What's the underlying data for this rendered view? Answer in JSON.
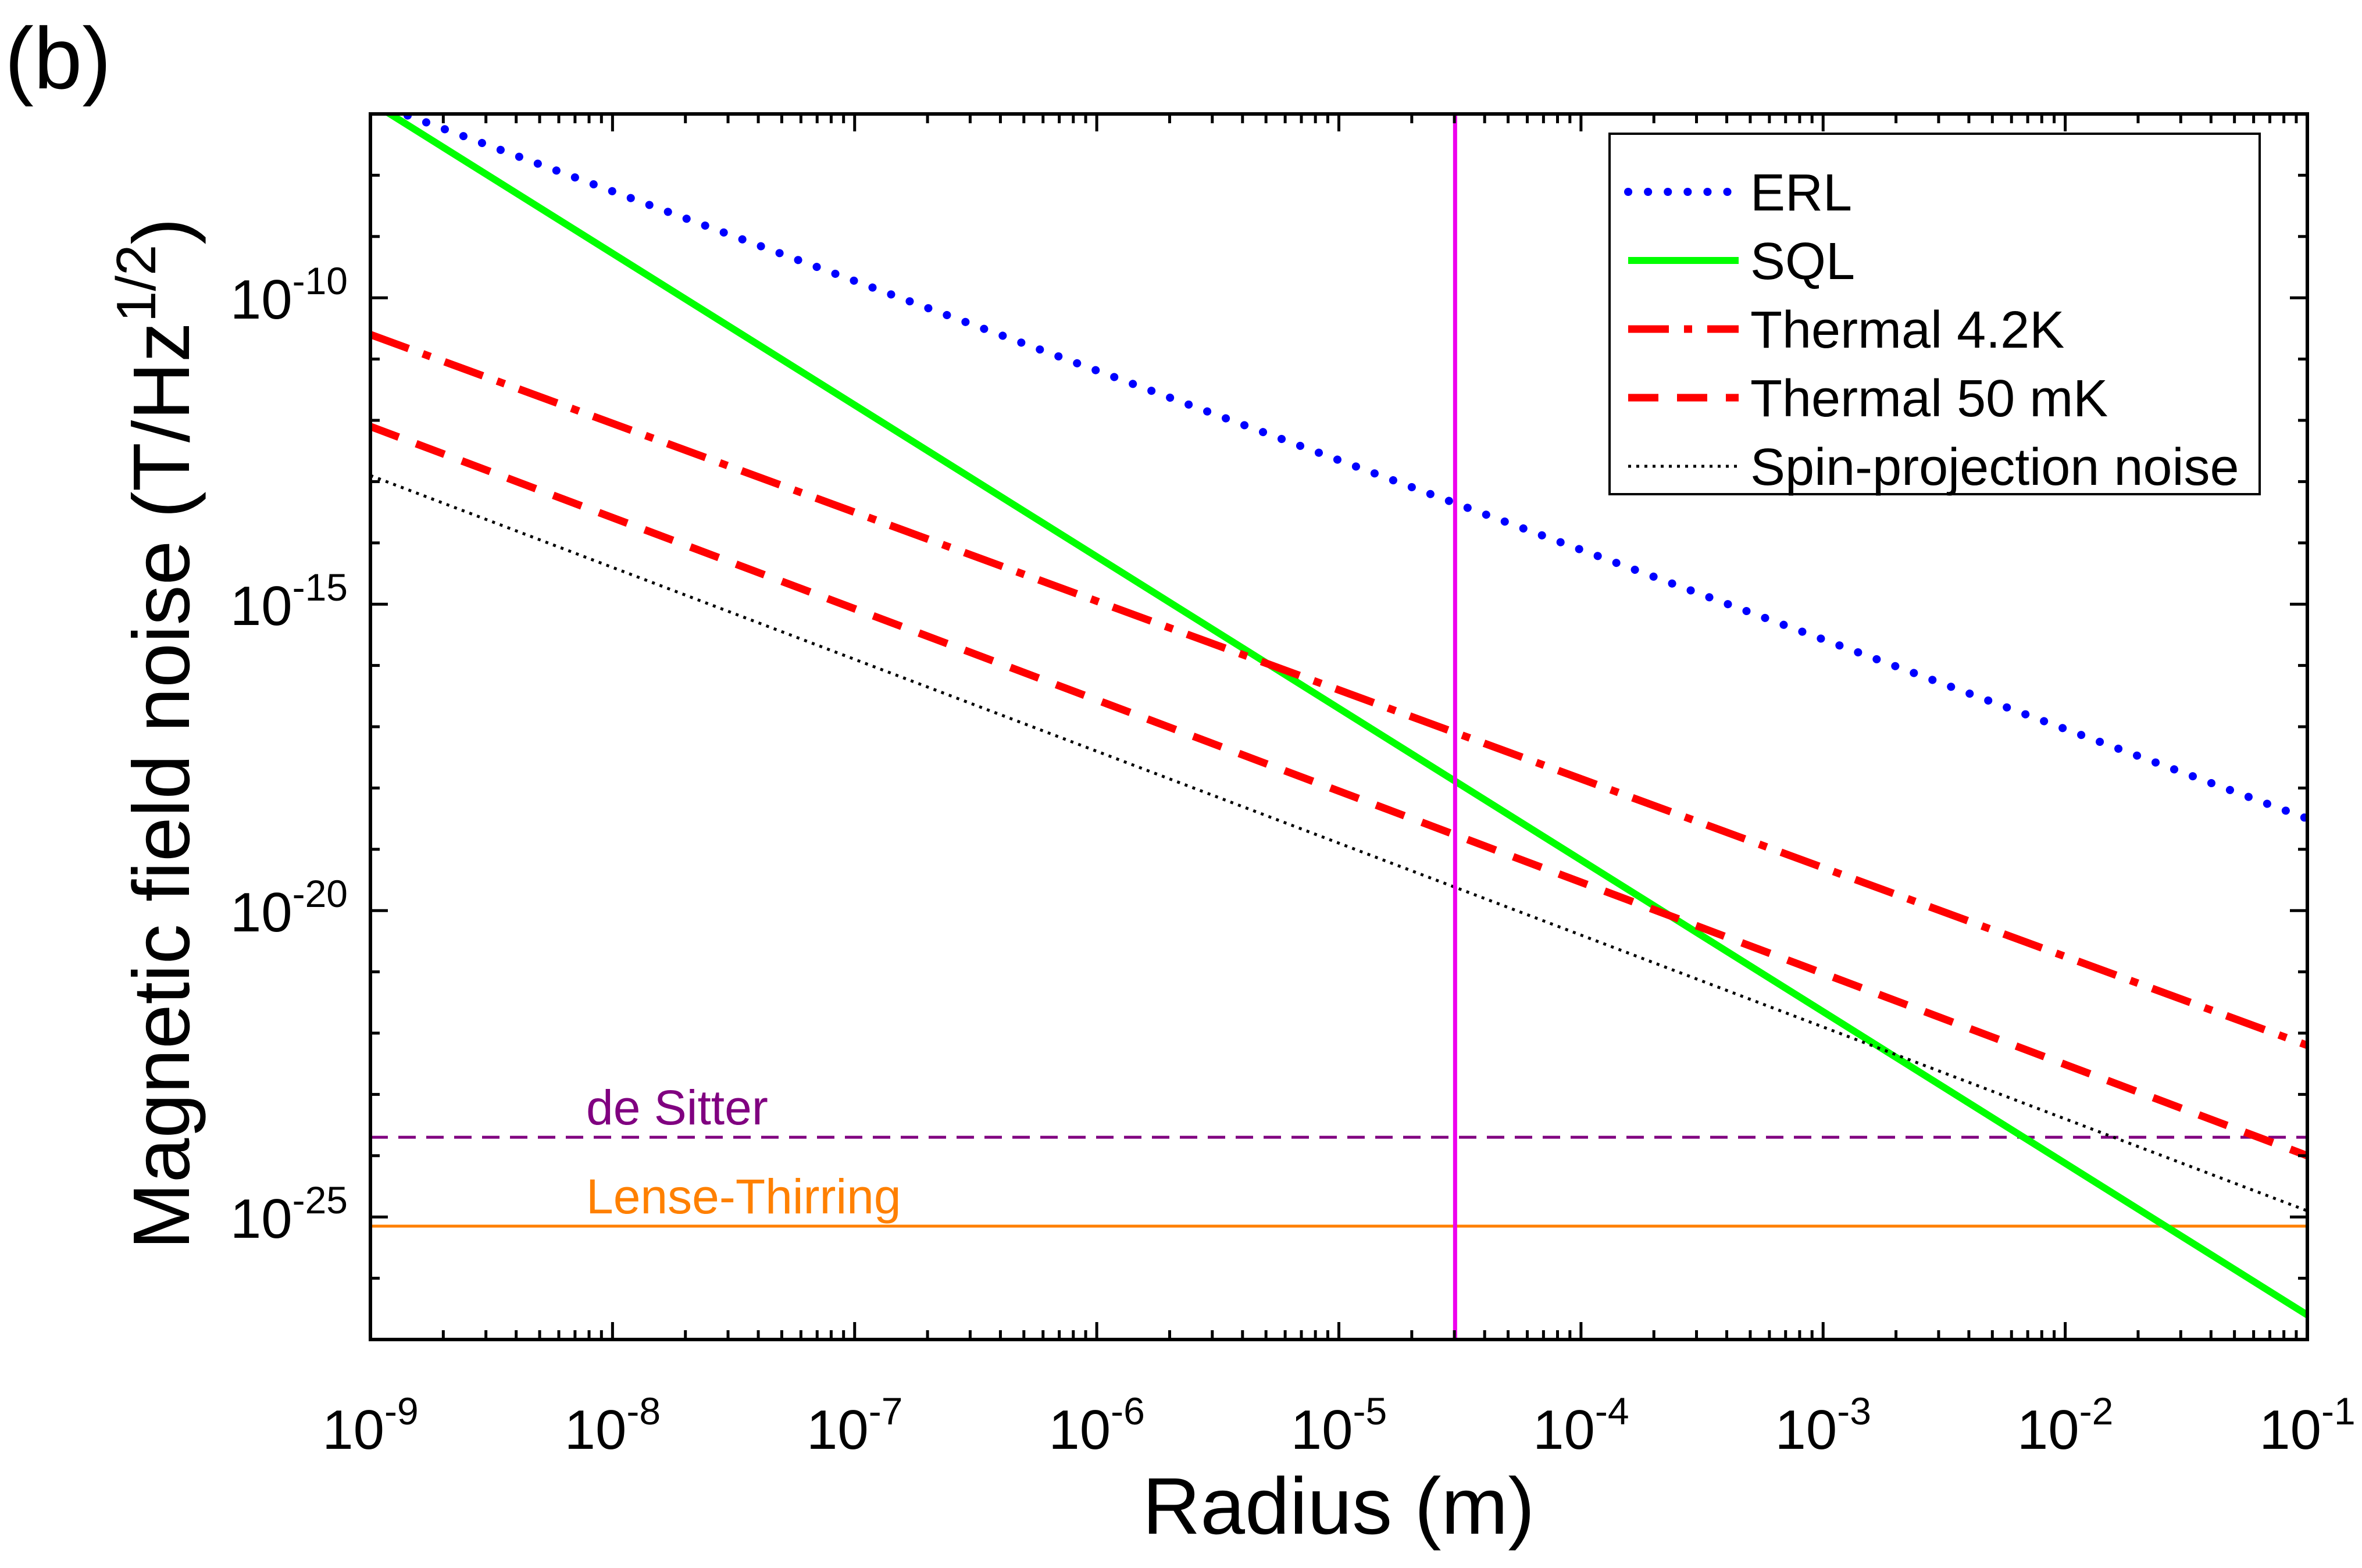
{
  "panel_label": "(b)",
  "colors": {
    "erl": "#0000ff",
    "sql": "#00ff00",
    "thermal": "#ff0000",
    "spin": "#000000",
    "de_sitter": "#800080",
    "lense_thirring": "#ff8000",
    "marker": "#ee00ee"
  },
  "chart_data": {
    "type": "line",
    "title": "",
    "xlabel": "Radius (m)",
    "ylabel": "Magnetic field noise (T/Hz",
    "ylabel_sup": "1/2",
    "ylabel_close": ")",
    "x_scale": "log",
    "y_scale": "log",
    "xlim_exp": [
      -9,
      -1
    ],
    "ylim_exp": [
      -27,
      -7
    ],
    "x_ticks": [
      {
        "exp": -9,
        "base": "10",
        "sup": "-9"
      },
      {
        "exp": -8,
        "base": "10",
        "sup": "-8"
      },
      {
        "exp": -7,
        "base": "10",
        "sup": "-7"
      },
      {
        "exp": -6,
        "base": "10",
        "sup": "-6"
      },
      {
        "exp": -5,
        "base": "10",
        "sup": "-5"
      },
      {
        "exp": -4,
        "base": "10",
        "sup": "-4"
      },
      {
        "exp": -3,
        "base": "10",
        "sup": "-3"
      },
      {
        "exp": -2,
        "base": "10",
        "sup": "-2"
      },
      {
        "exp": -1,
        "base": "10",
        "sup": "-1"
      }
    ],
    "y_ticks": [
      {
        "exp": -10,
        "base": "10",
        "sup": "-10"
      },
      {
        "exp": -15,
        "base": "10",
        "sup": "-15"
      },
      {
        "exp": -20,
        "base": "10",
        "sup": "-20"
      },
      {
        "exp": -25,
        "base": "10",
        "sup": "-25"
      }
    ],
    "grid": false,
    "legend_position": "top-right",
    "series": [
      {
        "name": "ERL",
        "style": "dotted-thick",
        "color_key": "erl",
        "log_x": [
          -9,
          -1
        ],
        "log_y": [
          -6.8,
          -18.5
        ]
      },
      {
        "name": "SQL",
        "style": "solid",
        "color_key": "sql",
        "log_x": [
          -9,
          -1
        ],
        "log_y": [
          -6.8,
          -26.6
        ]
      },
      {
        "name": "Thermal 4.2K",
        "style": "dashdot",
        "color_key": "thermal",
        "log_x": [
          -9,
          -1
        ],
        "log_y": [
          -10.6,
          -22.2
        ]
      },
      {
        "name": "Thermal 50 mK",
        "style": "dashed",
        "color_key": "thermal",
        "log_x": [
          -9,
          -1
        ],
        "log_y": [
          -12.1,
          -24.0
        ]
      },
      {
        "name": "Spin-projection noise",
        "style": "dotted-thin",
        "color_key": "spin",
        "log_x": [
          -9,
          -1
        ],
        "log_y": [
          -12.9,
          -24.9
        ]
      }
    ],
    "hlines": [
      {
        "name": "de Sitter",
        "log_y": -23.7,
        "style": "dashed",
        "color_key": "de_sitter"
      },
      {
        "name": "Lense-Thirring",
        "log_y": -25.15,
        "style": "solid",
        "color_key": "lense_thirring"
      }
    ],
    "vlines": [
      {
        "log_x": -4.52,
        "color_key": "marker"
      }
    ]
  }
}
